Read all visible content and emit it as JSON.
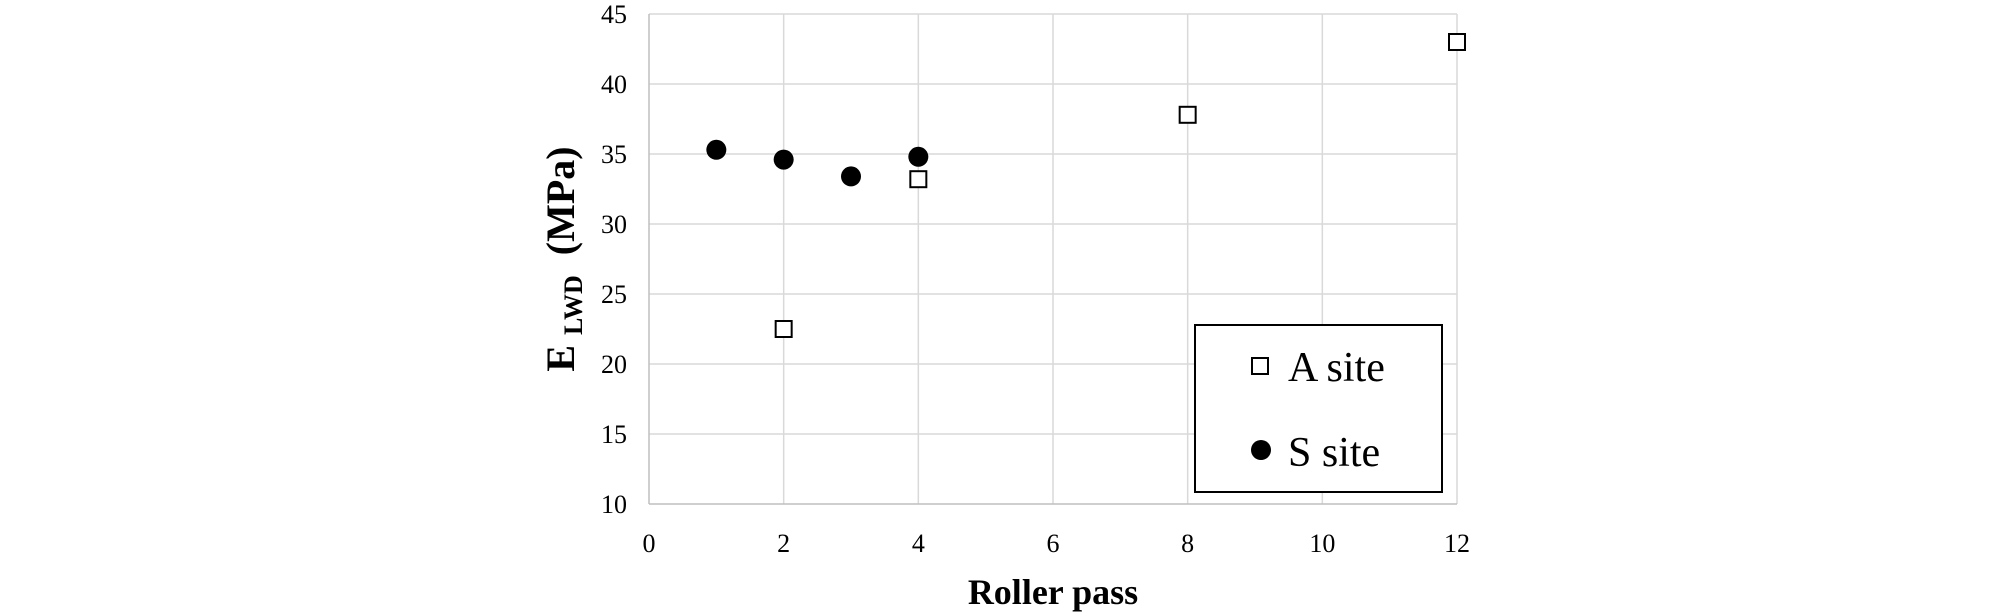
{
  "chart_data": {
    "type": "scatter",
    "title": "",
    "xlabel": "Roller pass",
    "ylabel_main": "E",
    "ylabel_sub": "LWD",
    "ylabel_unit": "(MPa)",
    "xlim": [
      0,
      12
    ],
    "ylim": [
      10,
      45
    ],
    "xticks": [
      0,
      2,
      4,
      6,
      8,
      10,
      12
    ],
    "yticks": [
      10,
      15,
      20,
      25,
      30,
      35,
      40,
      45
    ],
    "grid": true,
    "legend_position": "bottom-right",
    "series": [
      {
        "name": "A site",
        "marker": "open-square",
        "color": "#000000",
        "points": [
          {
            "x": 2,
            "y": 22.5
          },
          {
            "x": 4,
            "y": 33.2
          },
          {
            "x": 8,
            "y": 37.8
          },
          {
            "x": 12,
            "y": 43.0
          }
        ]
      },
      {
        "name": "S site",
        "marker": "filled-circle",
        "color": "#000000",
        "points": [
          {
            "x": 1,
            "y": 35.3
          },
          {
            "x": 2,
            "y": 34.6
          },
          {
            "x": 3,
            "y": 33.4
          },
          {
            "x": 4,
            "y": 34.8
          }
        ]
      }
    ]
  }
}
